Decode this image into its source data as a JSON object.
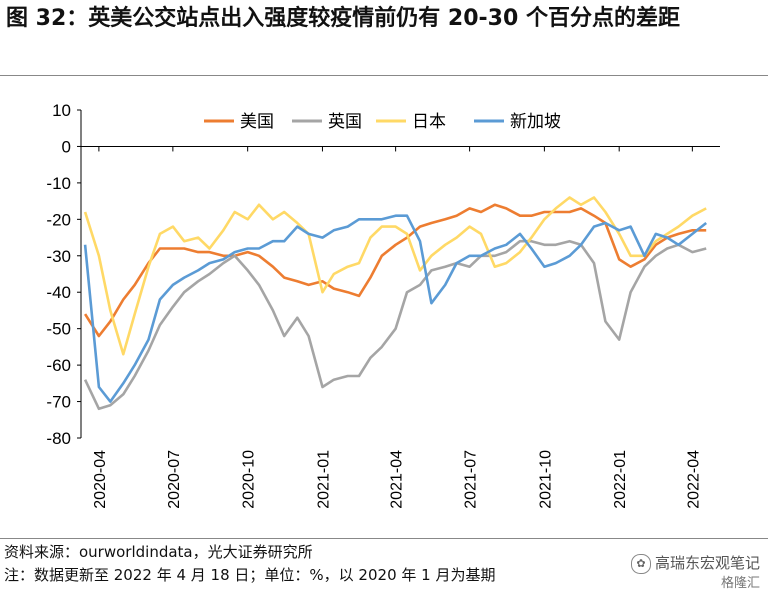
{
  "title": "图 32：英美公交站点出入强度较疫情前仍有 20-30 个百分点的差距",
  "source": "资料来源：ourworldindata，光大证券研究所",
  "note": "注：数据更新至 2022 年 4 月 18 日；单位：%，以 2020 年 1 月为基期",
  "brand": {
    "name": "高瑞东宏观笔记",
    "sub": "格隆汇"
  },
  "chart_data": {
    "type": "line",
    "xlabel": "",
    "ylabel": "",
    "x_ticks": [
      "2020-04",
      "2020-07",
      "2020-10",
      "2021-01",
      "2021-04",
      "2021-07",
      "2021-10",
      "2022-01",
      "2022-04"
    ],
    "ylim": [
      -80,
      10
    ],
    "y_ticks": [
      10,
      0,
      -10,
      -20,
      -30,
      -40,
      -50,
      -60,
      -70,
      -80
    ],
    "legend_position": "top",
    "series": [
      {
        "name": "美国",
        "color": "#ED7D31",
        "points": [
          [
            "2020-03-15",
            -46
          ],
          [
            "2020-04-01",
            -52
          ],
          [
            "2020-04-15",
            -48
          ],
          [
            "2020-05-01",
            -42
          ],
          [
            "2020-05-15",
            -38
          ],
          [
            "2020-06-01",
            -32
          ],
          [
            "2020-06-15",
            -28
          ],
          [
            "2020-07-01",
            -28
          ],
          [
            "2020-07-15",
            -28
          ],
          [
            "2020-08-01",
            -29
          ],
          [
            "2020-08-15",
            -29
          ],
          [
            "2020-09-01",
            -30
          ],
          [
            "2020-09-15",
            -30
          ],
          [
            "2020-10-01",
            -29
          ],
          [
            "2020-10-15",
            -30
          ],
          [
            "2020-11-01",
            -33
          ],
          [
            "2020-11-15",
            -36
          ],
          [
            "2020-12-01",
            -37
          ],
          [
            "2020-12-15",
            -38
          ],
          [
            "2021-01-01",
            -37
          ],
          [
            "2021-01-15",
            -39
          ],
          [
            "2021-02-01",
            -40
          ],
          [
            "2021-02-15",
            -41
          ],
          [
            "2021-03-01",
            -36
          ],
          [
            "2021-03-15",
            -30
          ],
          [
            "2021-04-01",
            -27
          ],
          [
            "2021-04-15",
            -25
          ],
          [
            "2021-05-01",
            -22
          ],
          [
            "2021-05-15",
            -21
          ],
          [
            "2021-06-01",
            -20
          ],
          [
            "2021-06-15",
            -19
          ],
          [
            "2021-07-01",
            -17
          ],
          [
            "2021-07-15",
            -18
          ],
          [
            "2021-08-01",
            -16
          ],
          [
            "2021-08-15",
            -17
          ],
          [
            "2021-09-01",
            -19
          ],
          [
            "2021-09-15",
            -19
          ],
          [
            "2021-10-01",
            -18
          ],
          [
            "2021-10-15",
            -18
          ],
          [
            "2021-11-01",
            -18
          ],
          [
            "2021-11-15",
            -17
          ],
          [
            "2021-12-01",
            -19
          ],
          [
            "2021-12-15",
            -21
          ],
          [
            "2022-01-01",
            -31
          ],
          [
            "2022-01-15",
            -33
          ],
          [
            "2022-02-01",
            -31
          ],
          [
            "2022-02-15",
            -27
          ],
          [
            "2022-03-01",
            -25
          ],
          [
            "2022-03-15",
            -24
          ],
          [
            "2022-04-01",
            -23
          ],
          [
            "2022-04-18",
            -23
          ]
        ]
      },
      {
        "name": "英国",
        "color": "#A5A5A5",
        "points": [
          [
            "2020-03-15",
            -64
          ],
          [
            "2020-04-01",
            -72
          ],
          [
            "2020-04-15",
            -71
          ],
          [
            "2020-05-01",
            -68
          ],
          [
            "2020-05-15",
            -63
          ],
          [
            "2020-06-01",
            -56
          ],
          [
            "2020-06-15",
            -49
          ],
          [
            "2020-07-01",
            -44
          ],
          [
            "2020-07-15",
            -40
          ],
          [
            "2020-08-01",
            -37
          ],
          [
            "2020-08-15",
            -35
          ],
          [
            "2020-09-01",
            -32
          ],
          [
            "2020-09-15",
            -30
          ],
          [
            "2020-10-01",
            -34
          ],
          [
            "2020-10-15",
            -38
          ],
          [
            "2020-11-01",
            -45
          ],
          [
            "2020-11-15",
            -52
          ],
          [
            "2020-12-01",
            -47
          ],
          [
            "2020-12-15",
            -52
          ],
          [
            "2021-01-01",
            -66
          ],
          [
            "2021-01-15",
            -64
          ],
          [
            "2021-02-01",
            -63
          ],
          [
            "2021-02-15",
            -63
          ],
          [
            "2021-03-01",
            -58
          ],
          [
            "2021-03-15",
            -55
          ],
          [
            "2021-04-01",
            -50
          ],
          [
            "2021-04-15",
            -40
          ],
          [
            "2021-05-01",
            -38
          ],
          [
            "2021-05-15",
            -34
          ],
          [
            "2021-06-01",
            -33
          ],
          [
            "2021-06-15",
            -32
          ],
          [
            "2021-07-01",
            -33
          ],
          [
            "2021-07-15",
            -30
          ],
          [
            "2021-08-01",
            -30
          ],
          [
            "2021-08-15",
            -29
          ],
          [
            "2021-09-01",
            -26
          ],
          [
            "2021-09-15",
            -26
          ],
          [
            "2021-10-01",
            -27
          ],
          [
            "2021-10-15",
            -27
          ],
          [
            "2021-11-01",
            -26
          ],
          [
            "2021-11-15",
            -27
          ],
          [
            "2021-12-01",
            -32
          ],
          [
            "2021-12-15",
            -48
          ],
          [
            "2022-01-01",
            -53
          ],
          [
            "2022-01-15",
            -40
          ],
          [
            "2022-02-01",
            -33
          ],
          [
            "2022-02-15",
            -30
          ],
          [
            "2022-03-01",
            -28
          ],
          [
            "2022-03-15",
            -27
          ],
          [
            "2022-04-01",
            -29
          ],
          [
            "2022-04-18",
            -28
          ]
        ]
      },
      {
        "name": "日本",
        "color": "#FFD966",
        "points": [
          [
            "2020-03-15",
            -18
          ],
          [
            "2020-04-01",
            -30
          ],
          [
            "2020-04-15",
            -45
          ],
          [
            "2020-05-01",
            -57
          ],
          [
            "2020-05-15",
            -46
          ],
          [
            "2020-06-01",
            -33
          ],
          [
            "2020-06-15",
            -24
          ],
          [
            "2020-07-01",
            -22
          ],
          [
            "2020-07-15",
            -26
          ],
          [
            "2020-08-01",
            -25
          ],
          [
            "2020-08-15",
            -28
          ],
          [
            "2020-09-01",
            -23
          ],
          [
            "2020-09-15",
            -18
          ],
          [
            "2020-10-01",
            -20
          ],
          [
            "2020-10-15",
            -16
          ],
          [
            "2020-11-01",
            -20
          ],
          [
            "2020-11-15",
            -18
          ],
          [
            "2020-12-01",
            -21
          ],
          [
            "2020-12-15",
            -24
          ],
          [
            "2021-01-01",
            -40
          ],
          [
            "2021-01-15",
            -35
          ],
          [
            "2021-02-01",
            -33
          ],
          [
            "2021-02-15",
            -32
          ],
          [
            "2021-03-01",
            -25
          ],
          [
            "2021-03-15",
            -22
          ],
          [
            "2021-04-01",
            -22
          ],
          [
            "2021-04-15",
            -24
          ],
          [
            "2021-05-01",
            -34
          ],
          [
            "2021-05-15",
            -30
          ],
          [
            "2021-06-01",
            -27
          ],
          [
            "2021-06-15",
            -25
          ],
          [
            "2021-07-01",
            -22
          ],
          [
            "2021-07-15",
            -24
          ],
          [
            "2021-08-01",
            -33
          ],
          [
            "2021-08-15",
            -32
          ],
          [
            "2021-09-01",
            -29
          ],
          [
            "2021-09-15",
            -25
          ],
          [
            "2021-10-01",
            -20
          ],
          [
            "2021-10-15",
            -17
          ],
          [
            "2021-11-01",
            -14
          ],
          [
            "2021-11-15",
            -16
          ],
          [
            "2021-12-01",
            -14
          ],
          [
            "2021-12-15",
            -18
          ],
          [
            "2022-01-01",
            -24
          ],
          [
            "2022-01-15",
            -30
          ],
          [
            "2022-02-01",
            -30
          ],
          [
            "2022-02-15",
            -26
          ],
          [
            "2022-03-01",
            -24
          ],
          [
            "2022-03-15",
            -22
          ],
          [
            "2022-04-01",
            -19
          ],
          [
            "2022-04-18",
            -17
          ]
        ]
      },
      {
        "name": "新加坡",
        "color": "#5B9BD5",
        "points": [
          [
            "2020-03-15",
            -27
          ],
          [
            "2020-04-01",
            -66
          ],
          [
            "2020-04-15",
            -70
          ],
          [
            "2020-05-01",
            -65
          ],
          [
            "2020-05-15",
            -60
          ],
          [
            "2020-06-01",
            -53
          ],
          [
            "2020-06-15",
            -42
          ],
          [
            "2020-07-01",
            -38
          ],
          [
            "2020-07-15",
            -36
          ],
          [
            "2020-08-01",
            -34
          ],
          [
            "2020-08-15",
            -32
          ],
          [
            "2020-09-01",
            -31
          ],
          [
            "2020-09-15",
            -29
          ],
          [
            "2020-10-01",
            -28
          ],
          [
            "2020-10-15",
            -28
          ],
          [
            "2020-11-01",
            -26
          ],
          [
            "2020-11-15",
            -26
          ],
          [
            "2020-12-01",
            -22
          ],
          [
            "2020-12-15",
            -24
          ],
          [
            "2021-01-01",
            -25
          ],
          [
            "2021-01-15",
            -23
          ],
          [
            "2021-02-01",
            -22
          ],
          [
            "2021-02-15",
            -20
          ],
          [
            "2021-03-01",
            -20
          ],
          [
            "2021-03-15",
            -20
          ],
          [
            "2021-04-01",
            -19
          ],
          [
            "2021-04-15",
            -19
          ],
          [
            "2021-05-01",
            -26
          ],
          [
            "2021-05-15",
            -43
          ],
          [
            "2021-06-01",
            -38
          ],
          [
            "2021-06-15",
            -32
          ],
          [
            "2021-07-01",
            -30
          ],
          [
            "2021-07-15",
            -30
          ],
          [
            "2021-08-01",
            -28
          ],
          [
            "2021-08-15",
            -27
          ],
          [
            "2021-09-01",
            -24
          ],
          [
            "2021-09-15",
            -28
          ],
          [
            "2021-10-01",
            -33
          ],
          [
            "2021-10-15",
            -32
          ],
          [
            "2021-11-01",
            -30
          ],
          [
            "2021-11-15",
            -27
          ],
          [
            "2021-12-01",
            -22
          ],
          [
            "2021-12-15",
            -21
          ],
          [
            "2022-01-01",
            -23
          ],
          [
            "2022-01-15",
            -22
          ],
          [
            "2022-02-01",
            -30
          ],
          [
            "2022-02-15",
            -24
          ],
          [
            "2022-03-01",
            -25
          ],
          [
            "2022-03-15",
            -27
          ],
          [
            "2022-04-01",
            -24
          ],
          [
            "2022-04-18",
            -21
          ]
        ]
      }
    ]
  }
}
